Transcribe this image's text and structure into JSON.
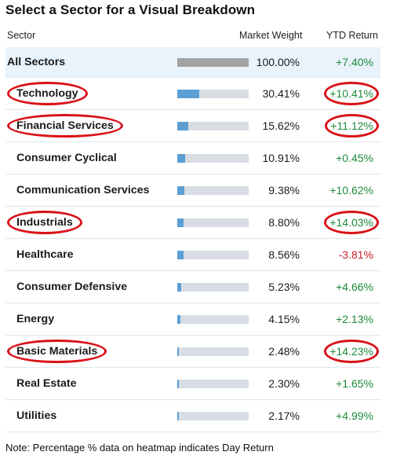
{
  "title": "Select a Sector for a Visual Breakdown",
  "columns": {
    "sector": "Sector",
    "weight": "Market Weight",
    "ytd": "YTD Return"
  },
  "colors": {
    "bar_fill": "#5c9fd4",
    "bar_fill_all": "#a3a3a3",
    "bar_track": "#d8dde3",
    "positive": "#1d8a3b",
    "negative": "#c8202a",
    "highlight_ring": "#d91218",
    "all_row_bg": "#e9f3fb"
  },
  "sectors": [
    {
      "name": "All Sectors",
      "weight": "100.00%",
      "weight_value": 100.0,
      "ytd": "+7.40%",
      "ytd_sign": "pos",
      "highlighted": false
    },
    {
      "name": "Technology",
      "weight": "30.41%",
      "weight_value": 30.41,
      "ytd": "+10.41%",
      "ytd_sign": "pos",
      "highlighted": true
    },
    {
      "name": "Financial Services",
      "weight": "15.62%",
      "weight_value": 15.62,
      "ytd": "+11.12%",
      "ytd_sign": "pos",
      "highlighted": true
    },
    {
      "name": "Consumer Cyclical",
      "weight": "10.91%",
      "weight_value": 10.91,
      "ytd": "+0.45%",
      "ytd_sign": "pos",
      "highlighted": false
    },
    {
      "name": "Communication Services",
      "weight": "9.38%",
      "weight_value": 9.38,
      "ytd": "+10.62%",
      "ytd_sign": "pos",
      "highlighted": false
    },
    {
      "name": "Industrials",
      "weight": "8.80%",
      "weight_value": 8.8,
      "ytd": "+14.03%",
      "ytd_sign": "pos",
      "highlighted": true
    },
    {
      "name": "Healthcare",
      "weight": "8.56%",
      "weight_value": 8.56,
      "ytd": "-3.81%",
      "ytd_sign": "neg",
      "highlighted": false
    },
    {
      "name": "Consumer Defensive",
      "weight": "5.23%",
      "weight_value": 5.23,
      "ytd": "+4.66%",
      "ytd_sign": "pos",
      "highlighted": false
    },
    {
      "name": "Energy",
      "weight": "4.15%",
      "weight_value": 4.15,
      "ytd": "+2.13%",
      "ytd_sign": "pos",
      "highlighted": false
    },
    {
      "name": "Basic Materials",
      "weight": "2.48%",
      "weight_value": 2.48,
      "ytd": "+14.23%",
      "ytd_sign": "pos",
      "highlighted": true
    },
    {
      "name": "Real Estate",
      "weight": "2.30%",
      "weight_value": 2.3,
      "ytd": "+1.65%",
      "ytd_sign": "pos",
      "highlighted": false
    },
    {
      "name": "Utilities",
      "weight": "2.17%",
      "weight_value": 2.17,
      "ytd": "+4.99%",
      "ytd_sign": "pos",
      "highlighted": false
    }
  ],
  "note": "Note: Percentage % data on heatmap indicates Day Return"
}
